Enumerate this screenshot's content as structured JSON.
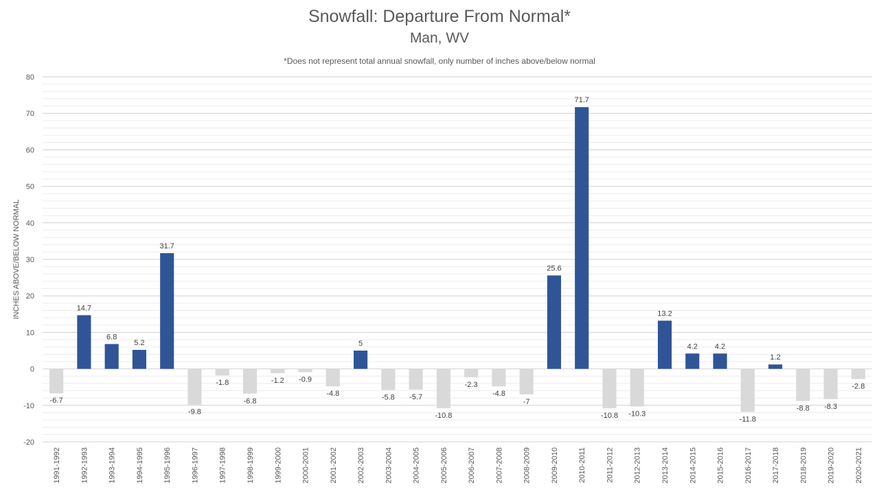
{
  "chart_data": {
    "type": "bar",
    "title": "Snowfall: Departure From Normal*",
    "subtitle": "Man, WV",
    "note": "*Does not represent  total annual snowfall, only number of inches above/below  normal",
    "ylabel": "INCHES ABOVE/BELOW NORMAL",
    "xlabel": "",
    "ylim": [
      -20,
      80
    ],
    "yticks": [
      -20,
      -10,
      0,
      10,
      20,
      30,
      40,
      50,
      60,
      70,
      80
    ],
    "grid": true,
    "legend": "none",
    "colors": {
      "positive": "#2f5597",
      "negative": "#d9d9d9"
    },
    "categories": [
      "1991-1992",
      "1992-1993",
      "1993-1994",
      "1994-1995",
      "1995-1996",
      "1996-1997",
      "1997-1998",
      "1998-1999",
      "1999-2000",
      "2000-2001",
      "2001-2002",
      "2002-2003",
      "2003-2004",
      "2004-2005",
      "2005-2006",
      "2006-2007",
      "2007-2008",
      "2008-2009",
      "2009-2010",
      "2010-2011",
      "2011-2012",
      "2012-2013",
      "2013-2014",
      "2014-2015",
      "2015-2016",
      "2016-2017",
      "2017-2018",
      "2018-2019",
      "2019-2020",
      "2020-2021"
    ],
    "values": [
      -6.7,
      14.7,
      6.8,
      5.2,
      31.7,
      -9.8,
      -1.8,
      -6.8,
      -1.2,
      -0.9,
      -4.8,
      5,
      -5.8,
      -5.7,
      -10.8,
      -2.3,
      -4.8,
      -7,
      25.6,
      71.7,
      -10.8,
      -10.3,
      13.2,
      4.2,
      4.2,
      -11.8,
      1.2,
      -8.8,
      -8.3,
      -2.8
    ]
  }
}
